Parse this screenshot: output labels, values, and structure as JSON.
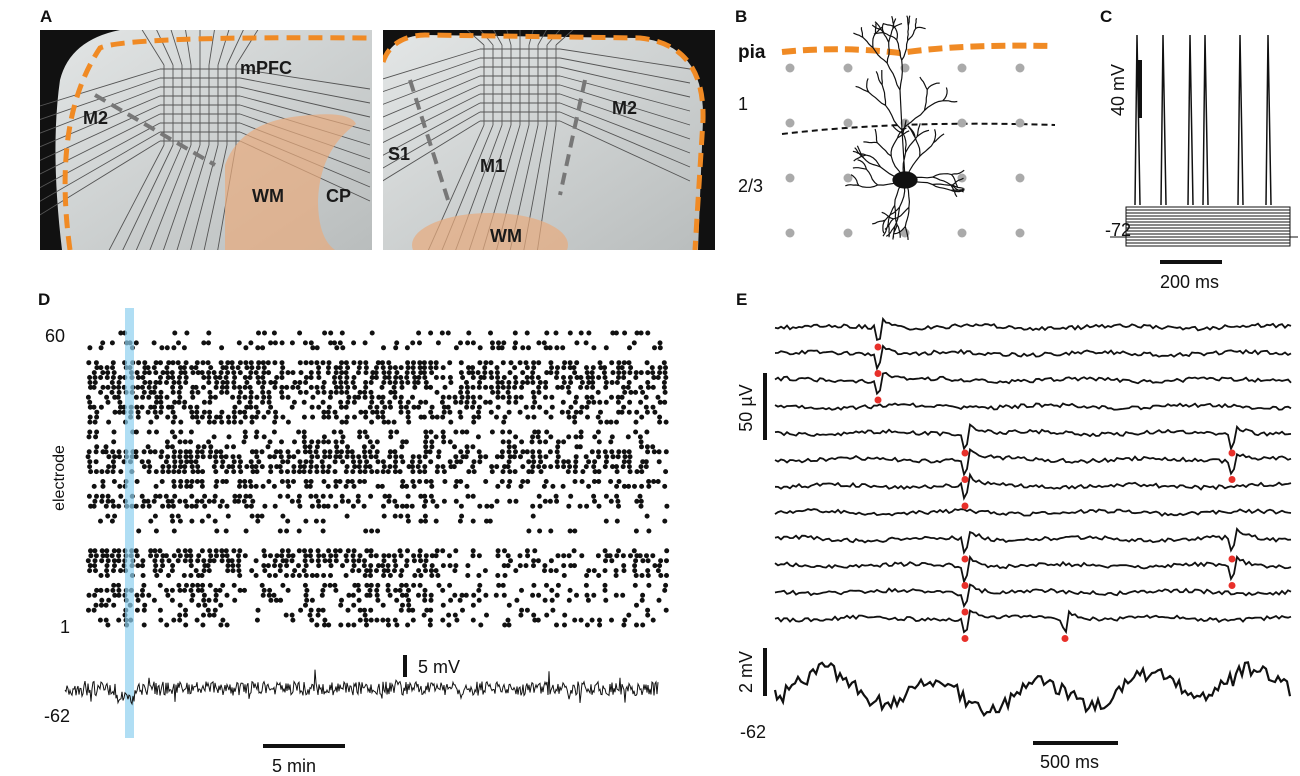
{
  "panels": {
    "A": {
      "label": "A",
      "left": {
        "regions": [
          "mPFC",
          "M2",
          "WM",
          "CP"
        ]
      },
      "right": {
        "regions": [
          "S1",
          "M1",
          "M2",
          "WM"
        ]
      }
    },
    "B": {
      "label": "B",
      "layers": [
        "pia",
        "1",
        "2/3"
      ]
    },
    "C": {
      "label": "C",
      "scale_v": "40 mV",
      "baseline": "-72",
      "scale_t": "200 ms"
    },
    "D": {
      "label": "D",
      "y_top": "60",
      "y_label": "electrode",
      "y_bottom": "1",
      "scale_v": "5 mV",
      "baseline": "-62",
      "scale_t": "5 min"
    },
    "E": {
      "label": "E",
      "scale_uv": "50 µV",
      "scale_v": "2 mV",
      "baseline": "-62",
      "scale_t": "500 ms"
    }
  }
}
